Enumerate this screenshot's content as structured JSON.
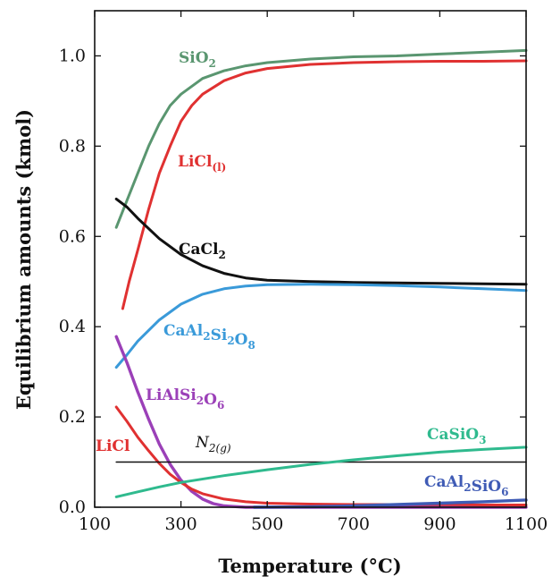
{
  "chart_data": {
    "type": "line",
    "title": "",
    "xlabel": "Temperature (°C)",
    "ylabel": "Equilibrium amounts (kmol)",
    "xlim": [
      100,
      1100
    ],
    "ylim": [
      0,
      1.1
    ],
    "xticks": [
      100,
      300,
      500,
      700,
      900,
      1100
    ],
    "xtick_labels": [
      "100",
      "300",
      "500",
      "700",
      "900",
      "1100"
    ],
    "yticks": [
      0,
      0.2,
      0.4,
      0.6,
      0.8,
      1.0
    ],
    "ytick_labels": [
      "0.0",
      "0.2",
      "0.4",
      "0.6",
      "0.8",
      "1.0"
    ],
    "grid": false,
    "series": [
      {
        "name": "SiO",
        "sub": "2",
        "color": "#5a9670",
        "points": [
          [
            150,
            0.62
          ],
          [
            175,
            0.68
          ],
          [
            200,
            0.74
          ],
          [
            225,
            0.8
          ],
          [
            250,
            0.85
          ],
          [
            275,
            0.89
          ],
          [
            300,
            0.915
          ],
          [
            350,
            0.95
          ],
          [
            400,
            0.967
          ],
          [
            450,
            0.978
          ],
          [
            500,
            0.985
          ],
          [
            600,
            0.993
          ],
          [
            700,
            0.998
          ],
          [
            800,
            1.0
          ],
          [
            900,
            1.004
          ],
          [
            1000,
            1.008
          ],
          [
            1100,
            1.012
          ]
        ]
      },
      {
        "name": "LiCl",
        "sub": "(l)",
        "color": "#e03131",
        "points": [
          [
            165,
            0.44
          ],
          [
            180,
            0.5
          ],
          [
            200,
            0.57
          ],
          [
            225,
            0.66
          ],
          [
            250,
            0.74
          ],
          [
            275,
            0.8
          ],
          [
            300,
            0.855
          ],
          [
            325,
            0.89
          ],
          [
            350,
            0.915
          ],
          [
            400,
            0.945
          ],
          [
            450,
            0.962
          ],
          [
            500,
            0.972
          ],
          [
            600,
            0.981
          ],
          [
            700,
            0.985
          ],
          [
            800,
            0.987
          ],
          [
            900,
            0.988
          ],
          [
            1000,
            0.988
          ],
          [
            1100,
            0.989
          ]
        ]
      },
      {
        "name": "CaCl",
        "sub": "2",
        "color": "#111111",
        "points": [
          [
            150,
            0.683
          ],
          [
            175,
            0.665
          ],
          [
            200,
            0.64
          ],
          [
            250,
            0.595
          ],
          [
            300,
            0.56
          ],
          [
            350,
            0.535
          ],
          [
            400,
            0.518
          ],
          [
            450,
            0.508
          ],
          [
            500,
            0.503
          ],
          [
            600,
            0.5
          ],
          [
            700,
            0.498
          ],
          [
            800,
            0.497
          ],
          [
            900,
            0.496
          ],
          [
            1000,
            0.495
          ],
          [
            1100,
            0.494
          ]
        ]
      },
      {
        "name": "CaAl",
        "sub": "2",
        "name2": "Si",
        "sub2": "2",
        "name3": "O",
        "sub3": "8",
        "color": "#3a9ad9",
        "points": [
          [
            150,
            0.31
          ],
          [
            175,
            0.338
          ],
          [
            200,
            0.368
          ],
          [
            250,
            0.415
          ],
          [
            300,
            0.45
          ],
          [
            350,
            0.472
          ],
          [
            400,
            0.484
          ],
          [
            450,
            0.49
          ],
          [
            500,
            0.493
          ],
          [
            600,
            0.494
          ],
          [
            700,
            0.493
          ],
          [
            800,
            0.491
          ],
          [
            900,
            0.488
          ],
          [
            1000,
            0.484
          ],
          [
            1100,
            0.48
          ]
        ]
      },
      {
        "name": "LiAlSi",
        "sub": "2",
        "name2": "O",
        "sub2": "6",
        "color": "#9b40b8",
        "points": [
          [
            150,
            0.378
          ],
          [
            175,
            0.32
          ],
          [
            200,
            0.255
          ],
          [
            225,
            0.195
          ],
          [
            250,
            0.14
          ],
          [
            275,
            0.095
          ],
          [
            300,
            0.06
          ],
          [
            325,
            0.035
          ],
          [
            350,
            0.018
          ],
          [
            375,
            0.008
          ],
          [
            400,
            0.003
          ],
          [
            450,
            0.0
          ],
          [
            1100,
            0.0
          ]
        ]
      },
      {
        "name": "LiCl",
        "sub": "",
        "color": "#e03131",
        "points": [
          [
            150,
            0.222
          ],
          [
            175,
            0.19
          ],
          [
            200,
            0.155
          ],
          [
            225,
            0.125
          ],
          [
            250,
            0.097
          ],
          [
            275,
            0.073
          ],
          [
            300,
            0.055
          ],
          [
            325,
            0.04
          ],
          [
            350,
            0.03
          ],
          [
            400,
            0.018
          ],
          [
            450,
            0.012
          ],
          [
            500,
            0.009
          ],
          [
            600,
            0.007
          ],
          [
            700,
            0.006
          ],
          [
            800,
            0.006
          ],
          [
            900,
            0.006
          ],
          [
            1000,
            0.005
          ],
          [
            1100,
            0.005
          ]
        ]
      },
      {
        "name": "N",
        "sub": "2(g)",
        "color": "#111111",
        "points": [
          [
            150,
            0.1
          ],
          [
            1100,
            0.1
          ]
        ]
      },
      {
        "name": "CaSiO",
        "sub": "3",
        "color": "#2fba8e",
        "points": [
          [
            150,
            0.023
          ],
          [
            200,
            0.034
          ],
          [
            250,
            0.045
          ],
          [
            300,
            0.055
          ],
          [
            400,
            0.07
          ],
          [
            500,
            0.083
          ],
          [
            600,
            0.095
          ],
          [
            700,
            0.105
          ],
          [
            800,
            0.114
          ],
          [
            900,
            0.122
          ],
          [
            1000,
            0.128
          ],
          [
            1100,
            0.133
          ]
        ]
      },
      {
        "name": "CaAl",
        "sub": "2",
        "name2": "SiO",
        "sub2": "6",
        "color": "#3f5bb5",
        "points": [
          [
            470,
            0.0
          ],
          [
            600,
            0.001
          ],
          [
            700,
            0.003
          ],
          [
            800,
            0.006
          ],
          [
            900,
            0.009
          ],
          [
            1000,
            0.012
          ],
          [
            1100,
            0.016
          ]
        ]
      }
    ]
  }
}
